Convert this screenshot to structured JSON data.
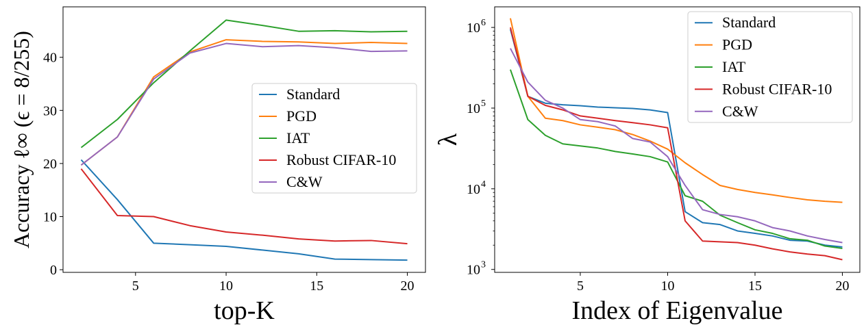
{
  "chart_data": [
    {
      "type": "line",
      "xlabel": "top-K",
      "ylabel": "Accuracy ℓ∞ (ϵ = 8/255)",
      "xlim": [
        1,
        21
      ],
      "ylim": [
        -0.5,
        49.5
      ],
      "xticks": [
        5,
        10,
        15,
        20
      ],
      "yticks": [
        0,
        10,
        20,
        30,
        40
      ],
      "legend_position": "center-right",
      "grid": false,
      "series": [
        {
          "name": "Standard",
          "color": "#1f77b4",
          "x": [
            2,
            4,
            6,
            8,
            10,
            12,
            14,
            16,
            18,
            20
          ],
          "y": [
            20.7,
            13.2,
            5.0,
            4.7,
            4.4,
            3.7,
            3.0,
            2.0,
            1.9,
            1.8
          ]
        },
        {
          "name": "PGD",
          "color": "#ff7f0e",
          "x": [
            2,
            4,
            6,
            8,
            10,
            12,
            14,
            16,
            18,
            20
          ],
          "y": [
            19.7,
            25.0,
            36.3,
            41.0,
            43.3,
            43.0,
            42.9,
            42.6,
            42.8,
            42.6
          ]
        },
        {
          "name": "IAT",
          "color": "#2ca02c",
          "x": [
            2,
            4,
            6,
            8,
            10,
            12,
            14,
            16,
            18,
            20
          ],
          "y": [
            23.0,
            28.3,
            35.2,
            41.2,
            47.0,
            46.0,
            44.9,
            45.0,
            44.8,
            44.9
          ]
        },
        {
          "name": "Robust CIFAR-10",
          "color": "#d62728",
          "x": [
            2,
            4,
            6,
            8,
            10,
            12,
            14,
            16,
            18,
            20
          ],
          "y": [
            19.0,
            10.2,
            10.0,
            8.3,
            7.1,
            6.5,
            5.8,
            5.4,
            5.5,
            4.9
          ]
        },
        {
          "name": "C&W",
          "color": "#9467bd",
          "x": [
            2,
            4,
            6,
            8,
            10,
            12,
            14,
            16,
            18,
            20
          ],
          "y": [
            19.7,
            25.0,
            35.9,
            40.8,
            42.6,
            42.0,
            42.2,
            41.8,
            41.1,
            41.2
          ]
        }
      ]
    },
    {
      "type": "line",
      "xlabel": "Index of Eigenvalue",
      "ylabel": "λ",
      "yscale": "log",
      "xlim": [
        0.1,
        21.0
      ],
      "ylim": [
        920,
        1800000
      ],
      "xticks": [
        5,
        10,
        15,
        20
      ],
      "yticks": [
        1000,
        10000,
        100000,
        1000000
      ],
      "ytick_labels": [
        [
          "10",
          "3"
        ],
        [
          "10",
          "4"
        ],
        [
          "10",
          "5"
        ],
        [
          "10",
          "6"
        ]
      ],
      "legend_position": "top-right",
      "grid": false,
      "series": [
        {
          "name": "Standard",
          "color": "#1f77b4",
          "x": [
            1,
            2,
            3,
            4,
            5,
            6,
            7,
            8,
            9,
            10,
            11,
            12,
            13,
            14,
            15,
            16,
            17,
            18,
            19,
            20
          ],
          "y": [
            950000,
            140000,
            115000,
            110000,
            107000,
            103000,
            101000,
            99000,
            95000,
            88000,
            5200,
            3800,
            3600,
            3000,
            2800,
            2600,
            2300,
            2250,
            2000,
            1900
          ]
        },
        {
          "name": "PGD",
          "color": "#ff7f0e",
          "x": [
            1,
            2,
            3,
            4,
            5,
            6,
            7,
            8,
            9,
            10,
            11,
            12,
            13,
            14,
            15,
            16,
            17,
            18,
            19,
            20
          ],
          "y": [
            1300000,
            140000,
            75000,
            70000,
            62000,
            58000,
            54000,
            47000,
            39000,
            31000,
            21000,
            15000,
            11000,
            9800,
            9000,
            8400,
            7800,
            7300,
            7000,
            6800
          ]
        },
        {
          "name": "IAT",
          "color": "#2ca02c",
          "x": [
            1,
            2,
            3,
            4,
            5,
            6,
            7,
            8,
            9,
            10,
            11,
            12,
            13,
            14,
            15,
            16,
            17,
            18,
            19,
            20
          ],
          "y": [
            300000,
            72000,
            46000,
            36000,
            34000,
            32000,
            29000,
            27000,
            25000,
            21500,
            8200,
            7000,
            4700,
            3800,
            3100,
            2800,
            2400,
            2300,
            1950,
            1820
          ]
        },
        {
          "name": "Robust CIFAR-10",
          "color": "#d62728",
          "x": [
            1,
            2,
            3,
            4,
            5,
            6,
            7,
            8,
            9,
            10,
            11,
            12,
            13,
            14,
            15,
            16,
            17,
            18,
            19,
            20
          ],
          "y": [
            1000000,
            140000,
            108000,
            95000,
            80000,
            75000,
            70000,
            66000,
            62000,
            57000,
            4000,
            2250,
            2200,
            2150,
            2000,
            1800,
            1650,
            1550,
            1480,
            1320
          ]
        },
        {
          "name": "C&W",
          "color": "#9467bd",
          "x": [
            1,
            2,
            3,
            4,
            5,
            6,
            7,
            8,
            9,
            10,
            11,
            12,
            13,
            14,
            15,
            16,
            17,
            18,
            19,
            20
          ],
          "y": [
            550000,
            210000,
            125000,
            100000,
            72000,
            68000,
            60000,
            42000,
            38000,
            25000,
            11000,
            5500,
            4800,
            4500,
            4000,
            3300,
            3000,
            2600,
            2350,
            2150
          ]
        }
      ]
    }
  ]
}
